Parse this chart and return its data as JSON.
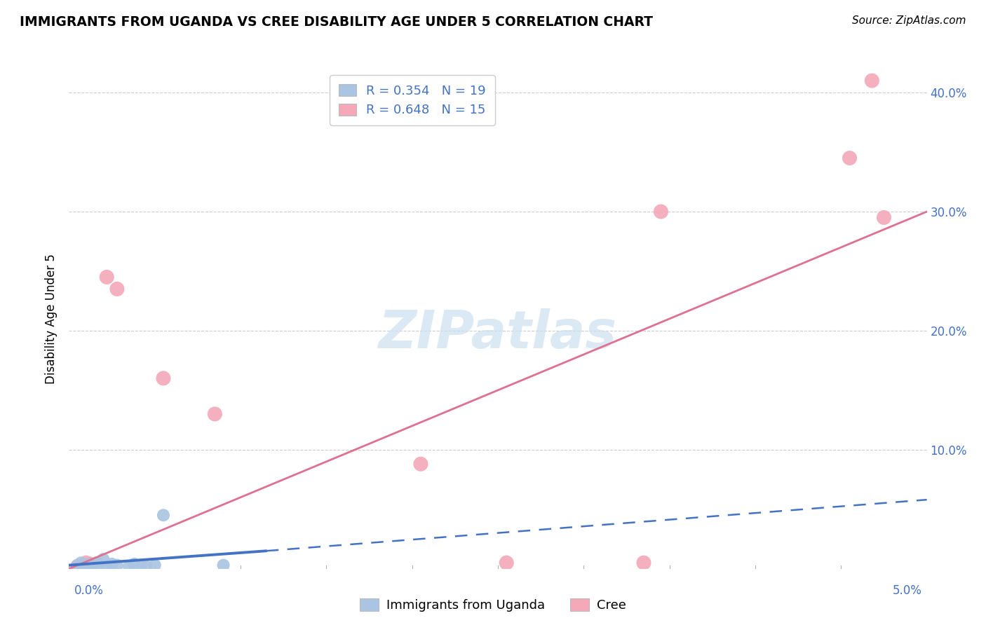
{
  "title": "IMMIGRANTS FROM UGANDA VS CREE DISABILITY AGE UNDER 5 CORRELATION CHART",
  "source": "Source: ZipAtlas.com",
  "ylabel": "Disability Age Under 5",
  "xlim": [
    0.0,
    5.0
  ],
  "ylim": [
    0.0,
    42.0
  ],
  "yticks": [
    0.0,
    10.0,
    20.0,
    30.0,
    40.0
  ],
  "ytick_labels": [
    "",
    "10.0%",
    "20.0%",
    "30.0%",
    "40.0%"
  ],
  "uganda_R": "0.354",
  "uganda_N": "19",
  "cree_R": "0.648",
  "cree_N": "15",
  "uganda_color": "#aac4e2",
  "cree_color": "#f4a8b8",
  "uganda_line_color": "#4472c4",
  "cree_line_color": "#e07090",
  "label_color": "#4472c4",
  "watermark_color": "#cce0f0",
  "uganda_points": [
    [
      0.05,
      0.3
    ],
    [
      0.07,
      0.5
    ],
    [
      0.08,
      0.2
    ],
    [
      0.1,
      0.1
    ],
    [
      0.12,
      0.4
    ],
    [
      0.14,
      0.2
    ],
    [
      0.16,
      0.5
    ],
    [
      0.18,
      0.3
    ],
    [
      0.2,
      0.8
    ],
    [
      0.22,
      0.2
    ],
    [
      0.25,
      0.4
    ],
    [
      0.28,
      0.3
    ],
    [
      0.35,
      0.2
    ],
    [
      0.38,
      0.4
    ],
    [
      0.42,
      0.3
    ],
    [
      0.45,
      0.2
    ],
    [
      0.5,
      0.3
    ],
    [
      0.55,
      4.5
    ],
    [
      0.9,
      0.3
    ]
  ],
  "cree_points": [
    [
      0.05,
      0.2
    ],
    [
      0.08,
      0.3
    ],
    [
      0.1,
      0.5
    ],
    [
      0.12,
      0.4
    ],
    [
      0.22,
      24.5
    ],
    [
      0.28,
      23.5
    ],
    [
      0.55,
      16.0
    ],
    [
      0.85,
      13.0
    ],
    [
      2.05,
      8.8
    ],
    [
      2.55,
      0.5
    ],
    [
      3.35,
      0.5
    ],
    [
      3.45,
      30.0
    ],
    [
      4.55,
      34.5
    ],
    [
      4.68,
      41.0
    ],
    [
      4.75,
      29.5
    ]
  ],
  "cree_line": [
    [
      -0.1,
      -0.6
    ],
    [
      5.0,
      30.0
    ]
  ],
  "uganda_solid_line": [
    [
      0.0,
      0.3
    ],
    [
      1.15,
      1.5
    ]
  ],
  "uganda_dash_line": [
    [
      1.15,
      1.5
    ],
    [
      5.0,
      5.8
    ]
  ]
}
